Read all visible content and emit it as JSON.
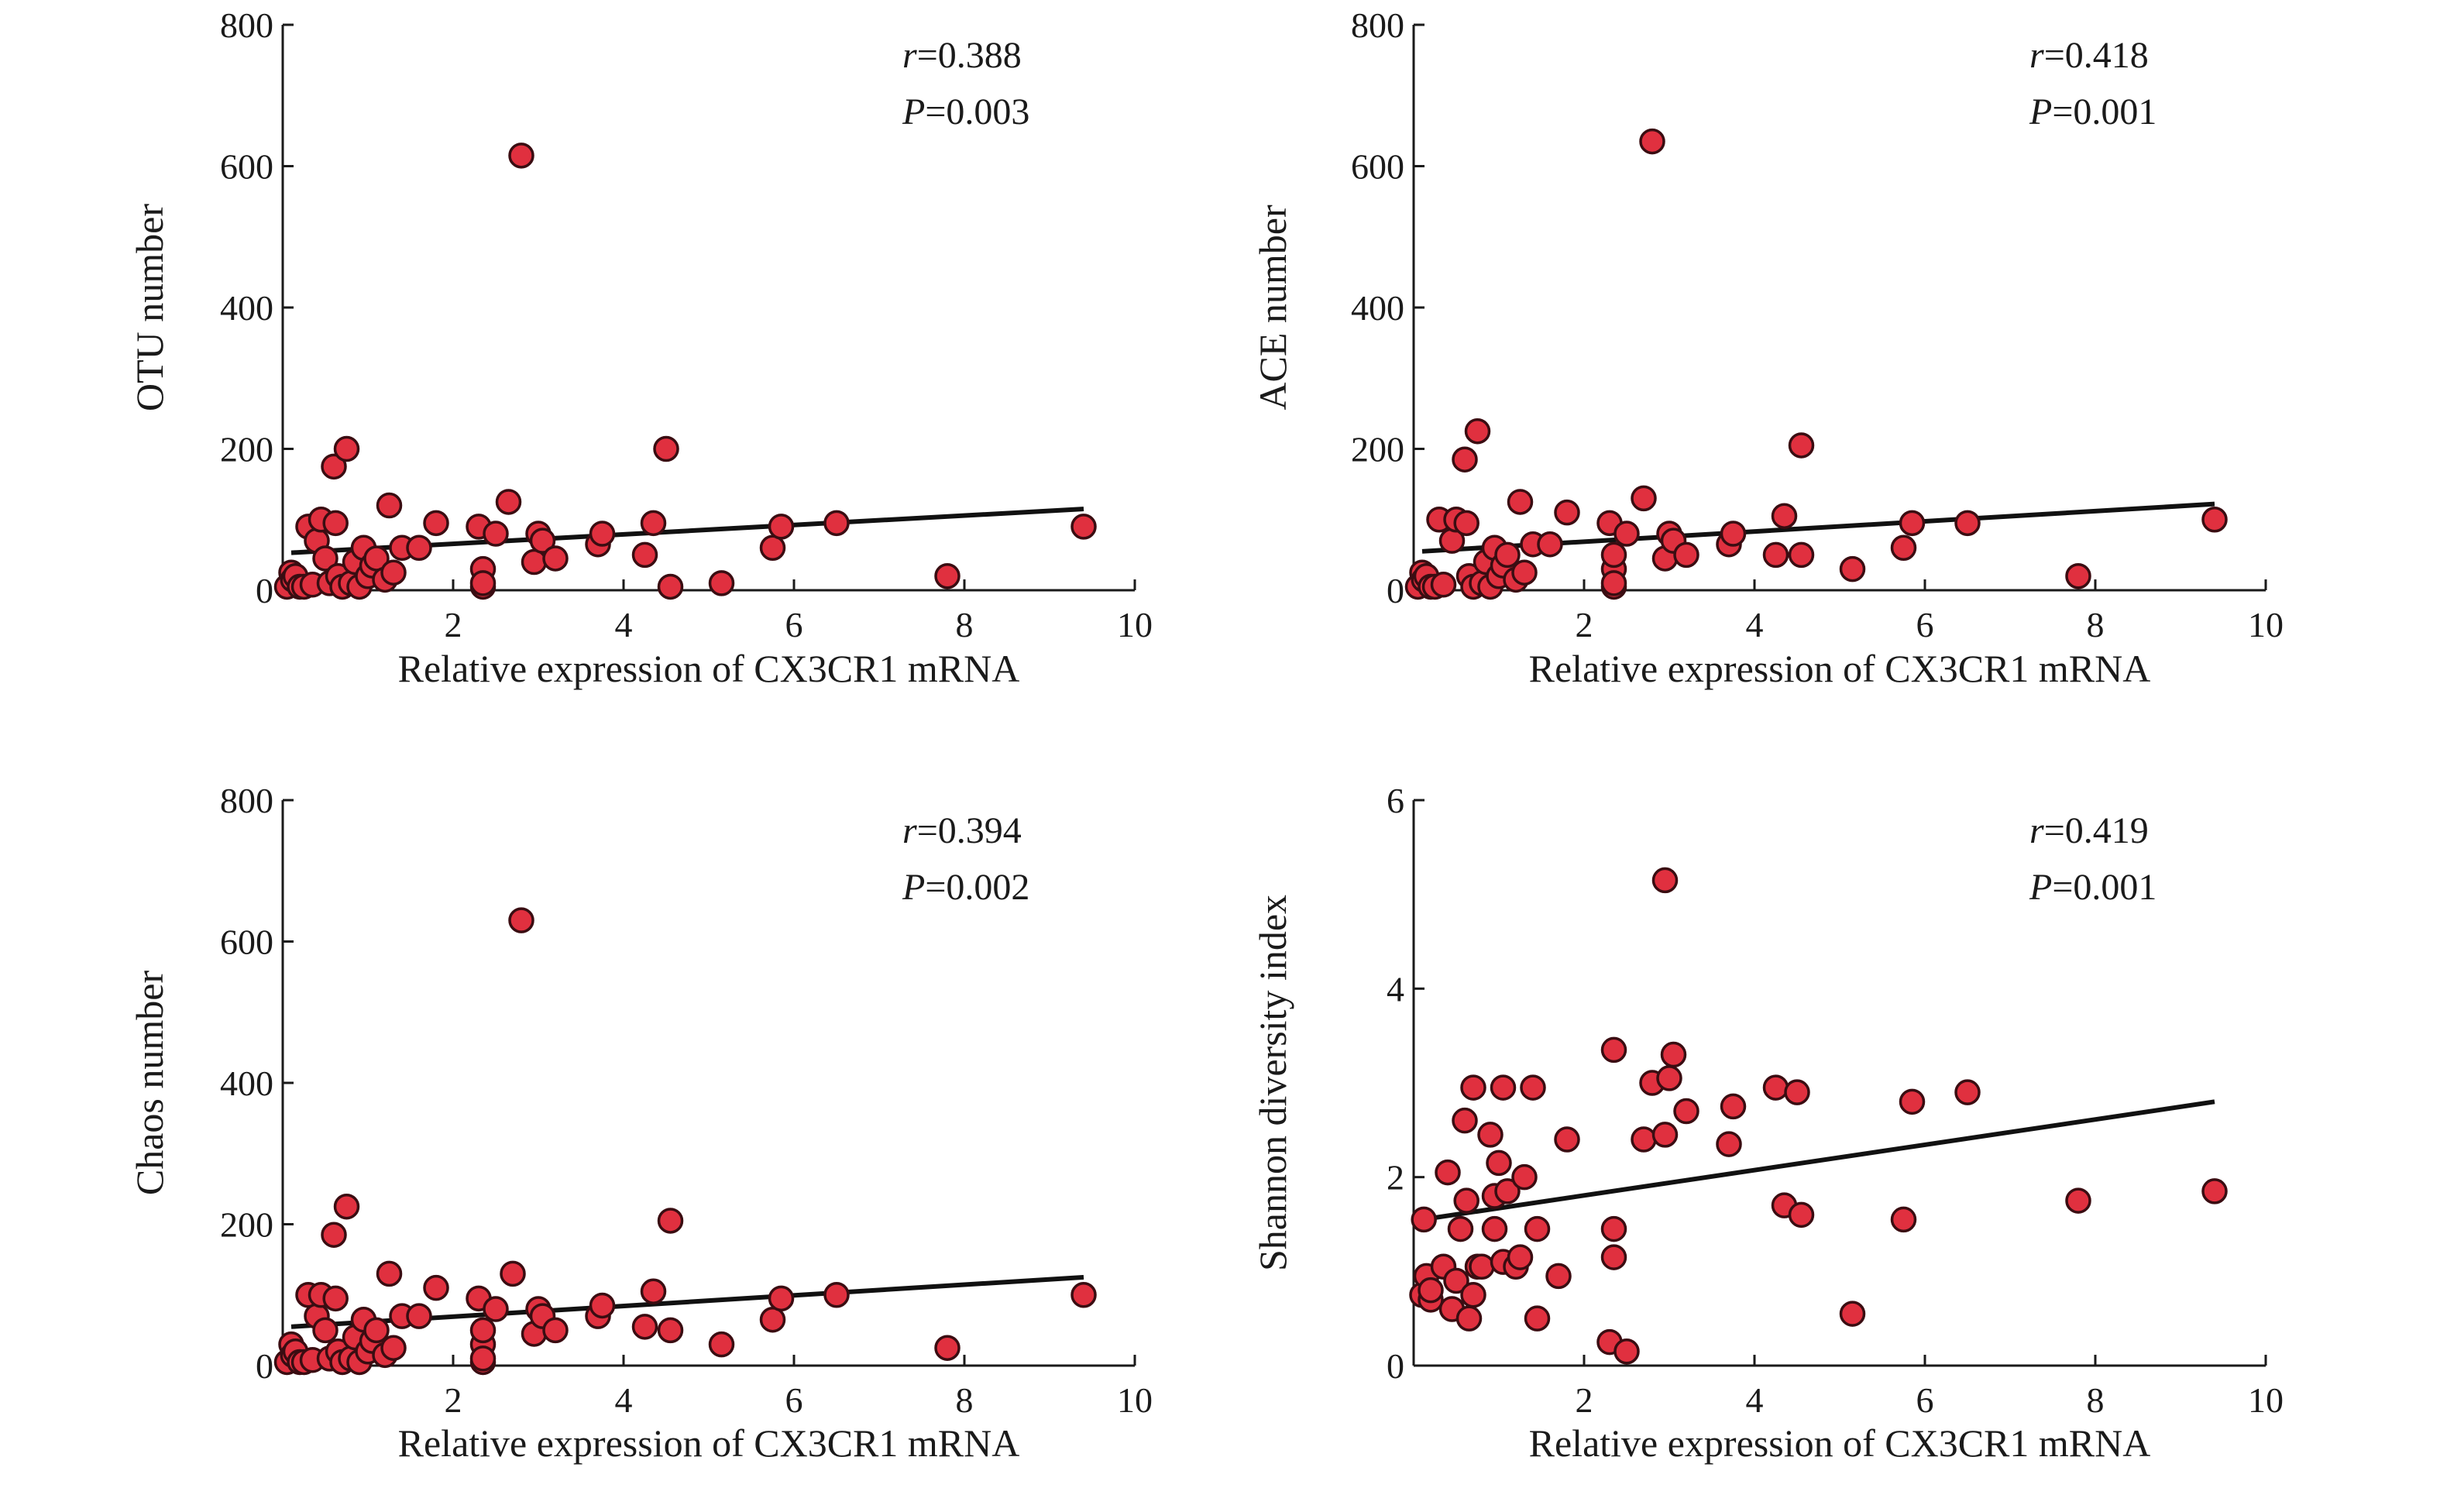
{
  "colors": {
    "point_fill": "#e0303f",
    "point_stroke": "#3a0d12",
    "axis": "#1a1a1a",
    "trend": "#111111"
  },
  "chart_data": [
    {
      "type": "scatter",
      "xlabel": "Relative expression of CX3CR1 mRNA",
      "ylabel": "OTU number",
      "xlim": [
        0,
        10
      ],
      "ylim": [
        0,
        800
      ],
      "x_ticks": [
        2,
        4,
        6,
        8,
        10
      ],
      "y_ticks": [
        0,
        200,
        400,
        600,
        800
      ],
      "x_tick_labels": [
        "2",
        "4",
        "6",
        "8",
        "10"
      ],
      "y_tick_labels": [
        "0",
        "200",
        "400",
        "600",
        "800"
      ],
      "stat_r_symbol": "r",
      "stat_r_value": "=0.388",
      "stat_p_symbol": "P",
      "stat_p_value": "=0.003",
      "trend": {
        "x": [
          0.1,
          9.4
        ],
        "y": [
          53,
          115
        ]
      },
      "x": [
        0.05,
        0.1,
        0.12,
        0.15,
        0.2,
        0.25,
        0.3,
        0.35,
        0.4,
        0.45,
        0.5,
        0.55,
        0.6,
        0.62,
        0.65,
        0.7,
        0.75,
        0.8,
        0.85,
        0.9,
        0.95,
        1.0,
        1.05,
        1.1,
        1.2,
        1.25,
        1.3,
        1.4,
        1.6,
        1.8,
        2.3,
        2.35,
        2.35,
        2.35,
        2.5,
        2.65,
        2.8,
        2.95,
        3.0,
        3.05,
        3.2,
        3.7,
        3.75,
        4.25,
        4.35,
        4.5,
        4.55,
        5.15,
        5.75,
        5.85,
        6.5,
        7.8,
        9.4
      ],
      "y": [
        5,
        25,
        15,
        20,
        5,
        5,
        90,
        8,
        70,
        100,
        45,
        10,
        175,
        95,
        20,
        5,
        200,
        10,
        40,
        5,
        60,
        20,
        35,
        45,
        15,
        120,
        25,
        60,
        60,
        95,
        90,
        5,
        30,
        10,
        80,
        125,
        615,
        40,
        80,
        70,
        45,
        65,
        80,
        50,
        95,
        200,
        5,
        10,
        60,
        90,
        95,
        20,
        90
      ]
    },
    {
      "type": "scatter",
      "xlabel": "Relative expression of CX3CR1 mRNA",
      "ylabel": "ACE number",
      "xlim": [
        0,
        10
      ],
      "ylim": [
        0,
        800
      ],
      "x_ticks": [
        2,
        4,
        6,
        8,
        10
      ],
      "y_ticks": [
        0,
        200,
        400,
        600,
        800
      ],
      "x_tick_labels": [
        "2",
        "4",
        "6",
        "8",
        "10"
      ],
      "y_tick_labels": [
        "0",
        "200",
        "400",
        "600",
        "800"
      ],
      "stat_r_symbol": "r",
      "stat_r_value": "=0.418",
      "stat_p_symbol": "P",
      "stat_p_value": "=0.001",
      "trend": {
        "x": [
          0.1,
          9.4
        ],
        "y": [
          55,
          122
        ]
      },
      "x": [
        0.05,
        0.1,
        0.12,
        0.15,
        0.2,
        0.25,
        0.3,
        0.35,
        0.45,
        0.5,
        0.6,
        0.62,
        0.65,
        0.7,
        0.75,
        0.8,
        0.85,
        0.9,
        0.95,
        1.0,
        1.05,
        1.1,
        1.2,
        1.25,
        1.3,
        1.4,
        1.6,
        1.8,
        2.3,
        2.35,
        2.35,
        2.35,
        2.35,
        2.5,
        2.7,
        2.8,
        2.95,
        3.0,
        3.05,
        3.2,
        3.7,
        3.75,
        4.25,
        4.35,
        4.55,
        4.55,
        5.15,
        5.75,
        5.85,
        6.5,
        7.8,
        9.4
      ],
      "y": [
        5,
        25,
        15,
        20,
        5,
        5,
        100,
        8,
        70,
        100,
        185,
        95,
        20,
        5,
        225,
        10,
        40,
        5,
        60,
        20,
        35,
        50,
        15,
        125,
        25,
        65,
        65,
        110,
        95,
        5,
        30,
        10,
        50,
        80,
        130,
        635,
        45,
        80,
        70,
        50,
        65,
        80,
        50,
        105,
        205,
        50,
        30,
        60,
        95,
        95,
        20,
        100
      ]
    },
    {
      "type": "scatter",
      "xlabel": "Relative expression of CX3CR1 mRNA",
      "ylabel": "Chaos number",
      "xlim": [
        0,
        10
      ],
      "ylim": [
        0,
        800
      ],
      "x_ticks": [
        2,
        4,
        6,
        8,
        10
      ],
      "y_ticks": [
        0,
        200,
        400,
        600,
        800
      ],
      "x_tick_labels": [
        "2",
        "4",
        "6",
        "8",
        "10"
      ],
      "y_tick_labels": [
        "0",
        "200",
        "400",
        "600",
        "800"
      ],
      "stat_r_symbol": "r",
      "stat_r_value": "=0.394",
      "stat_p_symbol": "P",
      "stat_p_value": "=0.002",
      "trend": {
        "x": [
          0.1,
          9.4
        ],
        "y": [
          55,
          125
        ]
      },
      "x": [
        0.05,
        0.1,
        0.12,
        0.15,
        0.2,
        0.25,
        0.3,
        0.35,
        0.4,
        0.45,
        0.5,
        0.55,
        0.6,
        0.62,
        0.65,
        0.7,
        0.75,
        0.8,
        0.85,
        0.9,
        0.95,
        1.0,
        1.05,
        1.1,
        1.2,
        1.25,
        1.3,
        1.4,
        1.6,
        1.8,
        2.3,
        2.35,
        2.35,
        2.35,
        2.35,
        2.5,
        2.7,
        2.8,
        2.95,
        3.0,
        3.05,
        3.2,
        3.7,
        3.75,
        4.25,
        4.35,
        4.55,
        4.55,
        5.15,
        5.75,
        5.85,
        6.5,
        7.8,
        9.4
      ],
      "y": [
        5,
        30,
        15,
        20,
        5,
        5,
        100,
        8,
        70,
        100,
        50,
        10,
        185,
        95,
        20,
        5,
        225,
        10,
        40,
        5,
        65,
        20,
        35,
        50,
        15,
        130,
        25,
        70,
        70,
        110,
        95,
        5,
        30,
        10,
        50,
        80,
        130,
        630,
        45,
        80,
        70,
        50,
        70,
        85,
        55,
        105,
        205,
        50,
        30,
        65,
        95,
        100,
        25,
        100
      ]
    },
    {
      "type": "scatter",
      "xlabel": "Relative expression of CX3CR1 mRNA",
      "ylabel": "Shannon diversity index",
      "xlim": [
        0,
        10
      ],
      "ylim": [
        0,
        6
      ],
      "x_ticks": [
        2,
        4,
        6,
        8,
        10
      ],
      "y_ticks": [
        0,
        2,
        4,
        6
      ],
      "x_tick_labels": [
        "2",
        "4",
        "6",
        "8",
        "10"
      ],
      "y_tick_labels": [
        "0",
        "2",
        "4",
        "6"
      ],
      "stat_r_symbol": "r",
      "stat_r_value": "=0.419",
      "stat_p_symbol": "P",
      "stat_p_value": "=0.001",
      "trend": {
        "x": [
          0.1,
          9.4
        ],
        "y": [
          1.55,
          2.8
        ]
      },
      "x": [
        0.1,
        0.12,
        0.15,
        0.2,
        0.2,
        0.35,
        0.4,
        0.45,
        0.5,
        0.55,
        0.6,
        0.62,
        0.65,
        0.7,
        0.7,
        0.75,
        0.8,
        0.9,
        0.95,
        0.95,
        1.0,
        1.05,
        1.05,
        1.1,
        1.2,
        1.25,
        1.3,
        1.4,
        1.45,
        1.45,
        1.7,
        1.8,
        2.3,
        2.35,
        2.35,
        2.35,
        2.5,
        2.7,
        2.8,
        2.95,
        2.95,
        3.0,
        3.05,
        3.2,
        3.7,
        3.75,
        4.25,
        4.35,
        4.5,
        4.55,
        5.15,
        5.75,
        5.85,
        6.5,
        7.8,
        9.4
      ],
      "y": [
        0.75,
        1.55,
        0.95,
        0.7,
        0.8,
        1.05,
        2.05,
        0.6,
        0.9,
        1.45,
        2.6,
        1.75,
        0.5,
        2.95,
        0.75,
        1.05,
        1.05,
        2.45,
        1.8,
        1.45,
        2.15,
        1.1,
        2.95,
        1.85,
        1.05,
        1.15,
        2.0,
        2.95,
        1.45,
        0.5,
        0.95,
        2.4,
        0.25,
        3.35,
        1.15,
        1.45,
        0.15,
        2.4,
        3.0,
        5.15,
        2.45,
        3.05,
        3.3,
        2.7,
        2.35,
        2.75,
        2.95,
        1.7,
        2.9,
        1.6,
        0.55,
        1.55,
        2.8,
        2.9,
        1.75,
        1.85
      ]
    }
  ]
}
